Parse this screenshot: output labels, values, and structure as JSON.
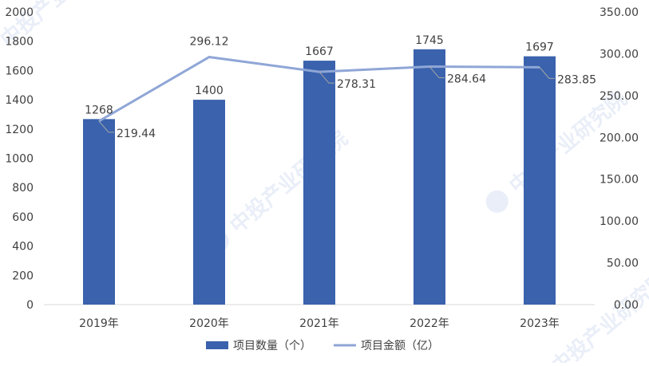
{
  "chart_data": {
    "type": "bar",
    "categories": [
      "2019年",
      "2020年",
      "2021年",
      "2022年",
      "2023年"
    ],
    "series": [
      {
        "name": "项目数量（个）",
        "type": "bar",
        "axis": "left",
        "values": [
          1268,
          1400,
          1667,
          1745,
          1697
        ],
        "labels": [
          "1268",
          "1400",
          "1667",
          "1745",
          "1697"
        ]
      },
      {
        "name": "项目金额（亿）",
        "type": "line",
        "axis": "right",
        "values": [
          219.44,
          296.12,
          278.31,
          284.64,
          283.85
        ],
        "labels": [
          "219.44",
          "296.12",
          "278.31",
          "284.64",
          "283.85"
        ]
      }
    ],
    "y_left": {
      "min": 0,
      "max": 2000,
      "ticks": [
        0,
        200,
        400,
        600,
        800,
        1000,
        1200,
        1400,
        1600,
        1800,
        2000
      ],
      "tick_labels": [
        "0",
        "200",
        "400",
        "600",
        "800",
        "1000",
        "1200",
        "1400",
        "1600",
        "1800",
        "2000"
      ]
    },
    "y_right": {
      "min": 0,
      "max": 350,
      "ticks": [
        0,
        50,
        100,
        150,
        200,
        250,
        300,
        350
      ],
      "tick_labels": [
        "0.00",
        "50.00",
        "100.00",
        "150.00",
        "200.00",
        "250.00",
        "300.00",
        "350.00"
      ]
    },
    "grid": false,
    "legend_position": "bottom",
    "colors": {
      "bar": "#3a62ad",
      "line": "#8fa6d6",
      "text": "#404040",
      "axis": "#d9d9d9",
      "leader": "#a6a6a6"
    },
    "watermark": "中投产业研究院"
  }
}
